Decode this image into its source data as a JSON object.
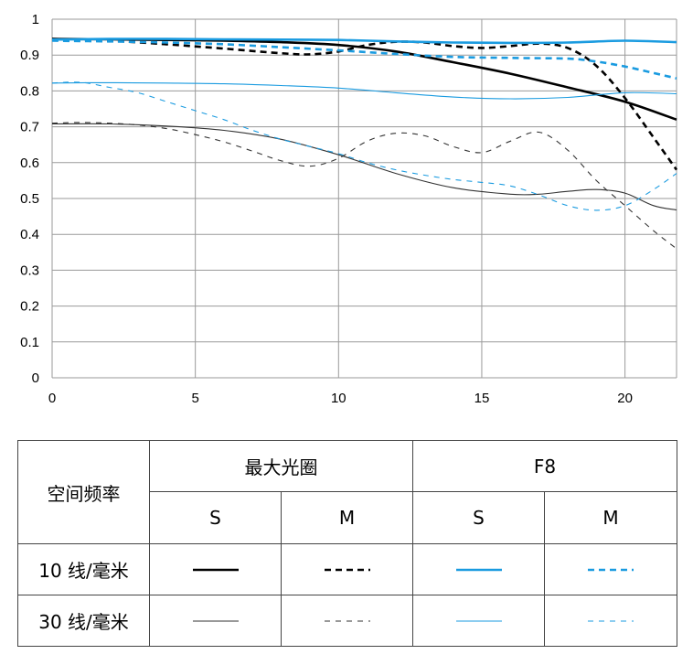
{
  "chart_data": {
    "type": "line",
    "title": "",
    "xlabel": "",
    "ylabel": "",
    "xlim": [
      0,
      21.8
    ],
    "ylim": [
      0,
      1
    ],
    "grid": true,
    "x_ticks": [
      "0",
      "5",
      "10",
      "15",
      "20"
    ],
    "y_ticks": [
      "0",
      "0.1",
      "0.2",
      "0.3",
      "0.4",
      "0.5",
      "0.6",
      "0.7",
      "0.8",
      "0.9",
      "1"
    ],
    "series": [
      {
        "name": "最大光圈 S 10 线/毫米",
        "color": "#000000",
        "width": 2.6,
        "dash": "",
        "x": [
          0,
          2,
          4,
          6,
          8,
          10,
          12,
          14,
          16,
          18,
          20,
          21.8
        ],
        "y": [
          0.945,
          0.944,
          0.942,
          0.94,
          0.936,
          0.928,
          0.91,
          0.88,
          0.848,
          0.81,
          0.77,
          0.72
        ]
      },
      {
        "name": "最大光圈 M 10 线/毫米",
        "color": "#000000",
        "width": 2.6,
        "dash": "7,5",
        "x": [
          0,
          2,
          4,
          6,
          8,
          9,
          10,
          11,
          12,
          13,
          14,
          15,
          16,
          17,
          18,
          19,
          20,
          21,
          21.8
        ],
        "y": [
          0.945,
          0.94,
          0.93,
          0.918,
          0.905,
          0.902,
          0.91,
          0.928,
          0.937,
          0.935,
          0.925,
          0.92,
          0.925,
          0.932,
          0.92,
          0.87,
          0.78,
          0.67,
          0.58
        ]
      },
      {
        "name": "F8 S 10 线/毫米",
        "color": "#1a9be0",
        "width": 2.6,
        "dash": "",
        "x": [
          0,
          2,
          4,
          6,
          8,
          10,
          12,
          14,
          16,
          18,
          20,
          21.8
        ],
        "y": [
          0.943,
          0.945,
          0.945,
          0.944,
          0.943,
          0.942,
          0.938,
          0.935,
          0.934,
          0.935,
          0.94,
          0.936
        ]
      },
      {
        "name": "F8 M 10 线/毫米",
        "color": "#1a9be0",
        "width": 2.6,
        "dash": "7,5",
        "x": [
          0,
          2,
          4,
          6,
          8,
          10,
          12,
          14,
          16,
          18,
          19,
          20,
          21,
          21.8
        ],
        "y": [
          0.94,
          0.938,
          0.935,
          0.93,
          0.922,
          0.913,
          0.903,
          0.895,
          0.892,
          0.89,
          0.882,
          0.868,
          0.85,
          0.835
        ]
      },
      {
        "name": "最大光圈 S 30 线/毫米",
        "color": "#333333",
        "width": 1.1,
        "dash": "",
        "x": [
          0,
          2,
          4,
          6,
          8,
          10,
          12,
          14,
          16,
          17,
          18,
          19,
          20,
          21,
          21.8
        ],
        "y": [
          0.708,
          0.708,
          0.702,
          0.69,
          0.665,
          0.622,
          0.57,
          0.53,
          0.512,
          0.512,
          0.52,
          0.525,
          0.515,
          0.48,
          0.468
        ]
      },
      {
        "name": "最大光圈 M 30 线/毫米",
        "color": "#333333",
        "width": 1.1,
        "dash": "6,6",
        "x": [
          0,
          1,
          2,
          3,
          4,
          5,
          6,
          7,
          8,
          9,
          10,
          11,
          12,
          13,
          14,
          15,
          16,
          17,
          18,
          19,
          20,
          21,
          21.8
        ],
        "y": [
          0.71,
          0.712,
          0.71,
          0.705,
          0.695,
          0.678,
          0.658,
          0.632,
          0.605,
          0.59,
          0.612,
          0.66,
          0.682,
          0.675,
          0.645,
          0.628,
          0.66,
          0.685,
          0.635,
          0.55,
          0.48,
          0.41,
          0.36
        ]
      },
      {
        "name": "F8 S 30 线/毫米",
        "color": "#1a9be0",
        "width": 1.1,
        "dash": "",
        "x": [
          0,
          2,
          4,
          6,
          8,
          10,
          12,
          14,
          16,
          18,
          20,
          21.8
        ],
        "y": [
          0.822,
          0.823,
          0.822,
          0.82,
          0.815,
          0.808,
          0.795,
          0.783,
          0.778,
          0.782,
          0.795,
          0.792
        ]
      },
      {
        "name": "F8 M 30 线/毫米",
        "color": "#1a9be0",
        "width": 1.1,
        "dash": "6,6",
        "x": [
          0,
          1,
          2,
          3,
          4,
          5,
          6,
          7,
          8,
          9,
          10,
          11,
          12,
          13,
          14,
          15,
          16,
          17,
          18,
          19,
          20,
          21,
          21.8
        ],
        "y": [
          0.822,
          0.824,
          0.81,
          0.795,
          0.77,
          0.745,
          0.72,
          0.69,
          0.665,
          0.645,
          0.625,
          0.6,
          0.58,
          0.565,
          0.553,
          0.545,
          0.535,
          0.51,
          0.48,
          0.467,
          0.48,
          0.525,
          0.57
        ]
      }
    ]
  },
  "legend": {
    "row_header": "空间频率",
    "groups": [
      "最大光圈",
      "F8"
    ],
    "subheaders": [
      "S",
      "M",
      "S",
      "M"
    ],
    "rows": [
      {
        "label": "10 线/毫米"
      },
      {
        "label": "30 线/毫米"
      }
    ]
  }
}
